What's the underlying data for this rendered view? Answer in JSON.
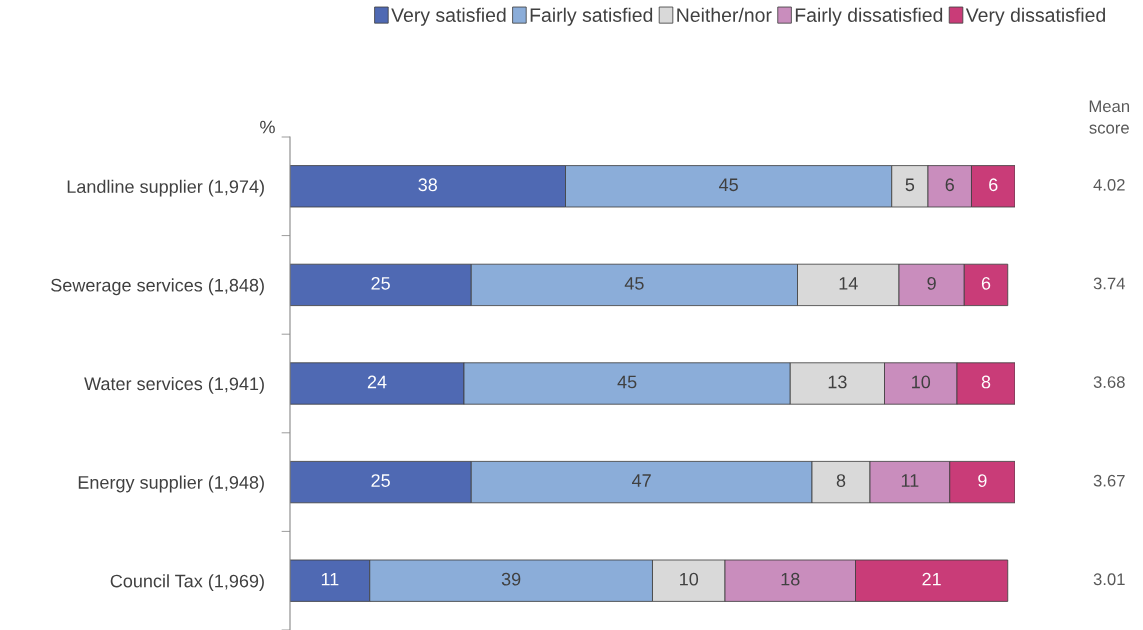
{
  "chart_data": {
    "type": "bar",
    "orientation": "horizontal",
    "stacked": true,
    "ylabel": "%",
    "categories": [
      "Landline supplier (1,974)",
      "Sewerage services (1,848)",
      "Water services (1,941)",
      "Energy supplier (1,948)",
      "Council Tax (1,969)"
    ],
    "series": [
      {
        "name": "Very satisfied",
        "color": "#4f69b3",
        "values": [
          38,
          25,
          24,
          25,
          11
        ]
      },
      {
        "name": "Fairly satisfied",
        "color": "#8badd9",
        "values": [
          45,
          45,
          45,
          47,
          39
        ]
      },
      {
        "name": "Neither/nor",
        "color": "#d9d9d9",
        "values": [
          5,
          14,
          13,
          8,
          10
        ]
      },
      {
        "name": "Fairly dissatisfied",
        "color": "#c98dbd",
        "values": [
          6,
          9,
          10,
          11,
          18
        ]
      },
      {
        "name": "Very dissatisfied",
        "color": "#c93c78",
        "values": [
          6,
          6,
          8,
          9,
          21
        ]
      }
    ],
    "xlim": [
      0,
      100
    ],
    "tick_labels": "y",
    "data_labels": true,
    "legend": "top",
    "grid": false,
    "annotations": [
      "Mean\nscore",
      "4.02",
      "3.74",
      "3.68",
      "3.67",
      "3.01"
    ]
  }
}
